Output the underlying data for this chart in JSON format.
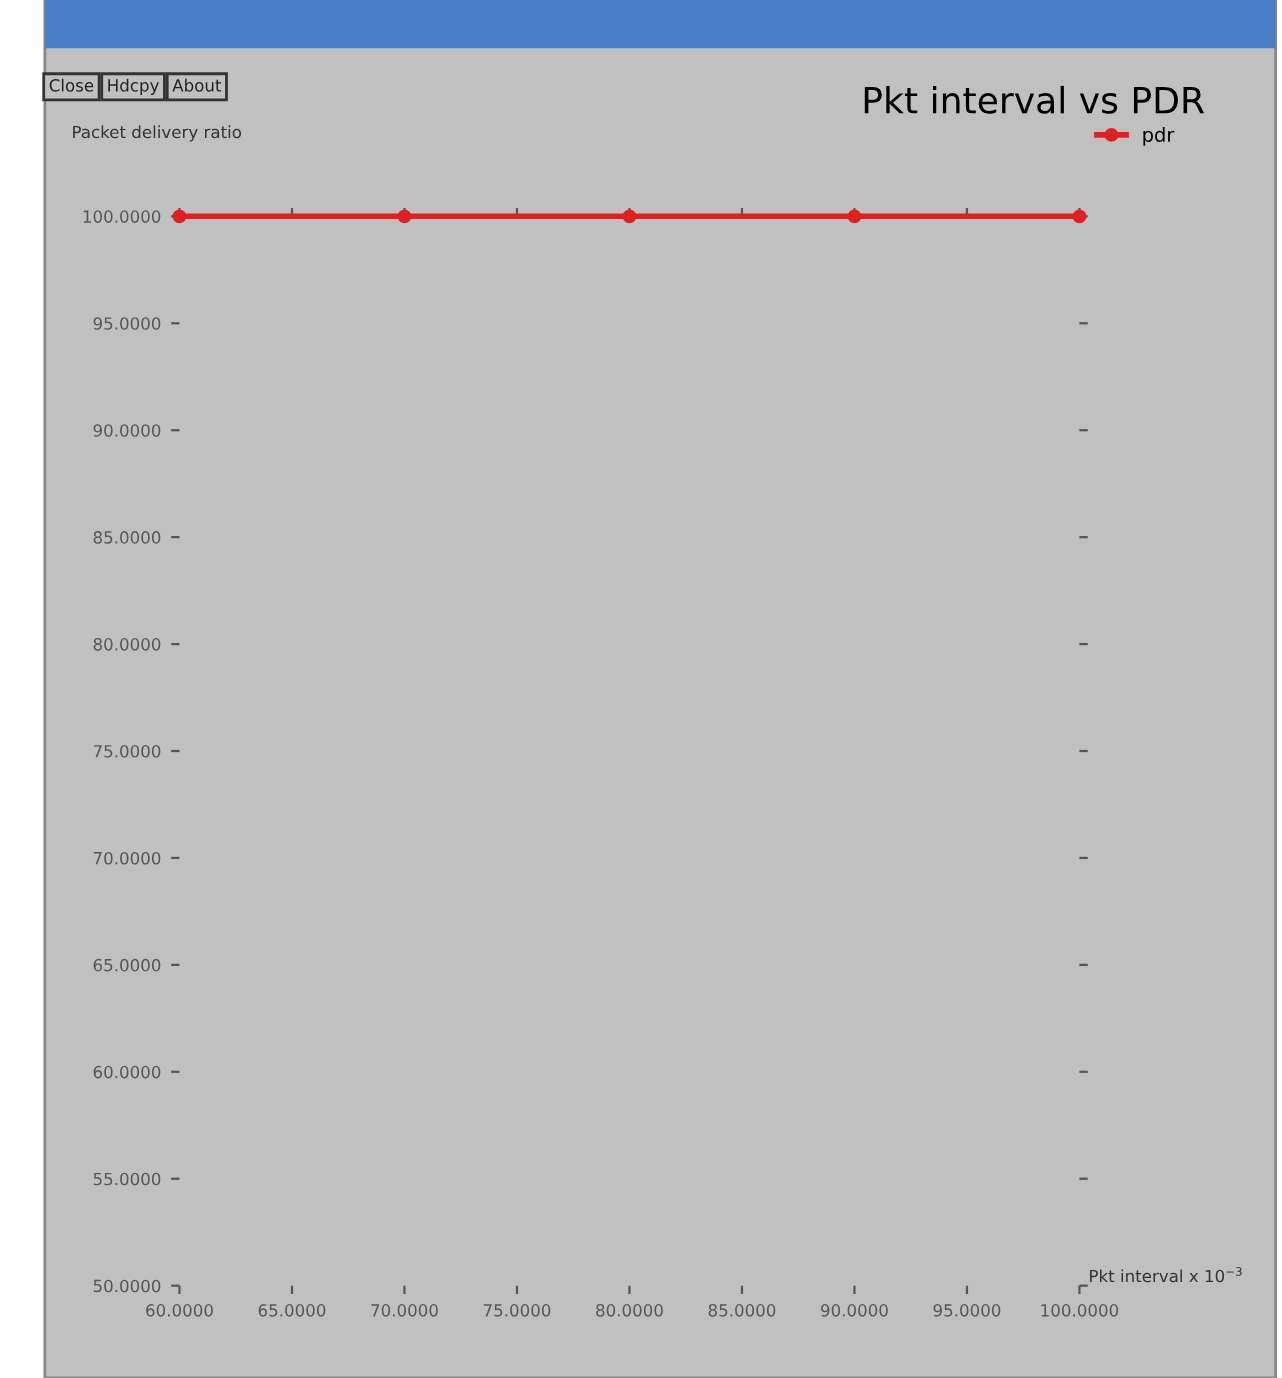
{
  "chart_data": {
    "type": "line",
    "title": "Pkt interval vs PDR",
    "xlabel": "Pkt interval x 10$^{−3}$",
    "ylabel": "Packet delivery ratio",
    "annotations": [
      "Close",
      "Hdcpy",
      "About"
    ],
    "x": [
      60,
      70,
      80,
      90,
      100
    ],
    "series": [
      {
        "name": "pdr",
        "color": "#e02020",
        "values": [
          100,
          100,
          100,
          100,
          100
        ]
      }
    ],
    "xlim": [
      60,
      100
    ],
    "ylim": [
      50,
      100
    ],
    "xticks": [
      {
        "value": 60,
        "label": "60.0000"
      },
      {
        "value": 65,
        "label": "65.0000"
      },
      {
        "value": 70,
        "label": "70.0000"
      },
      {
        "value": 75,
        "label": "75.0000"
      },
      {
        "value": 80,
        "label": "80.0000"
      },
      {
        "value": 85,
        "label": "85.0000"
      },
      {
        "value": 90,
        "label": "90.0000"
      },
      {
        "value": 95,
        "label": "95.0000"
      },
      {
        "value": 100,
        "label": "100.0000"
      }
    ],
    "yticks": [
      {
        "value": 50,
        "label": "50.0000"
      },
      {
        "value": 55,
        "label": "55.0000"
      },
      {
        "value": 60,
        "label": "60.0000"
      },
      {
        "value": 65,
        "label": "65.0000"
      },
      {
        "value": 70,
        "label": "70.0000"
      },
      {
        "value": 75,
        "label": "75.0000"
      },
      {
        "value": 80,
        "label": "80.0000"
      },
      {
        "value": 85,
        "label": "85.0000"
      },
      {
        "value": 90,
        "label": "90.0000"
      },
      {
        "value": 95,
        "label": "95.0000"
      },
      {
        "value": 100,
        "label": "100.0000"
      }
    ],
    "grid": false,
    "legend": "top right",
    "marker": "circle",
    "line_style": "solid"
  }
}
